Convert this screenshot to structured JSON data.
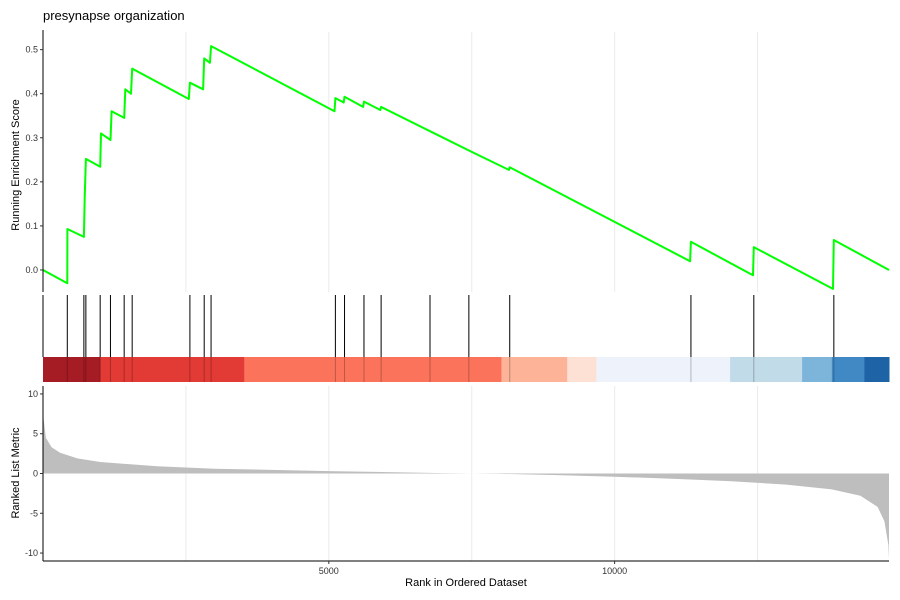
{
  "chart_data": {
    "type": "line",
    "title": "presynapse organization",
    "xlabel": "Rank in Ordered Dataset",
    "xlim": [
      0,
      14800
    ],
    "x_ticks": [
      5000,
      10000
    ],
    "x_tick_labels": [
      "5000",
      "10000"
    ],
    "x_gridlines": [
      2500,
      5000,
      7500,
      10000,
      12500
    ],
    "top_panel": {
      "ylabel": "Running Enrichment Score",
      "ylim": [
        -0.05,
        0.54
      ],
      "y_ticks": [
        0.0,
        0.1,
        0.2,
        0.3,
        0.4,
        0.5
      ],
      "y_tick_labels": [
        "0.0",
        "0.1",
        "0.2",
        "0.3",
        "0.4",
        "0.5"
      ],
      "line_color": "#00ff00",
      "points": [
        [
          0,
          0.0
        ],
        [
          425,
          -0.03
        ],
        [
          426,
          0.093
        ],
        [
          715,
          0.075
        ],
        [
          730,
          0.165
        ],
        [
          750,
          0.252
        ],
        [
          1000,
          0.234
        ],
        [
          1015,
          0.31
        ],
        [
          1180,
          0.295
        ],
        [
          1200,
          0.36
        ],
        [
          1420,
          0.345
        ],
        [
          1440,
          0.41
        ],
        [
          1540,
          0.4
        ],
        [
          1560,
          0.457
        ],
        [
          2550,
          0.388
        ],
        [
          2570,
          0.425
        ],
        [
          2800,
          0.41
        ],
        [
          2820,
          0.48
        ],
        [
          2920,
          0.47
        ],
        [
          2940,
          0.508
        ],
        [
          5100,
          0.36
        ],
        [
          5115,
          0.39
        ],
        [
          5260,
          0.38
        ],
        [
          5275,
          0.393
        ],
        [
          5600,
          0.37
        ],
        [
          5615,
          0.382
        ],
        [
          5900,
          0.363
        ],
        [
          5915,
          0.37
        ],
        [
          6770,
          0.315
        ],
        [
          7450,
          0.271
        ],
        [
          8150,
          0.227
        ],
        [
          8165,
          0.233
        ],
        [
          11320,
          0.02
        ],
        [
          11335,
          0.064
        ],
        [
          12420,
          -0.012
        ],
        [
          12435,
          0.052
        ],
        [
          13820,
          -0.043
        ],
        [
          13835,
          0.068
        ],
        [
          14800,
          0.0
        ]
      ]
    },
    "hit_positions": [
      425,
      715,
      750,
      1000,
      1180,
      1420,
      1560,
      2570,
      2820,
      2940,
      5115,
      5275,
      5615,
      5915,
      6770,
      7450,
      8165,
      11335,
      12435,
      13835
    ],
    "heat_bar": {
      "segments": [
        {
          "from": 0,
          "to": 1000,
          "color": "#a61c24"
        },
        {
          "from": 1000,
          "to": 3520,
          "color": "#e23a35"
        },
        {
          "from": 3520,
          "to": 8020,
          "color": "#fb735a"
        },
        {
          "from": 8020,
          "to": 9170,
          "color": "#fdb397"
        },
        {
          "from": 9170,
          "to": 9680,
          "color": "#fee1d5"
        },
        {
          "from": 9680,
          "to": 12020,
          "color": "#eef3fb"
        },
        {
          "from": 12020,
          "to": 13280,
          "color": "#c2dbe9"
        },
        {
          "from": 13280,
          "to": 13800,
          "color": "#7db5da"
        },
        {
          "from": 13800,
          "to": 14370,
          "color": "#4089c4"
        },
        {
          "from": 14370,
          "to": 14800,
          "color": "#1d63a6"
        }
      ]
    },
    "bottom_panel": {
      "ylabel": "Ranked List Metric",
      "ylim": [
        -11,
        11
      ],
      "y_ticks": [
        10,
        5,
        0,
        -5,
        -10
      ],
      "y_tick_labels": [
        "10",
        "5",
        "0",
        "-5",
        "-10"
      ],
      "fill_color": "#bebebe",
      "points": [
        [
          0,
          7.5
        ],
        [
          50,
          4.5
        ],
        [
          150,
          3.3
        ],
        [
          300,
          2.6
        ],
        [
          600,
          1.9
        ],
        [
          1000,
          1.45
        ],
        [
          2000,
          0.9
        ],
        [
          3000,
          0.6
        ],
        [
          5000,
          0.3
        ],
        [
          7000,
          0.05
        ],
        [
          8000,
          -0.05
        ],
        [
          9000,
          -0.2
        ],
        [
          10000,
          -0.4
        ],
        [
          11000,
          -0.65
        ],
        [
          12000,
          -0.95
        ],
        [
          13000,
          -1.4
        ],
        [
          13800,
          -2.0
        ],
        [
          14300,
          -2.8
        ],
        [
          14600,
          -4.2
        ],
        [
          14720,
          -6.0
        ],
        [
          14790,
          -9.0
        ],
        [
          14800,
          -10.8
        ]
      ]
    }
  }
}
